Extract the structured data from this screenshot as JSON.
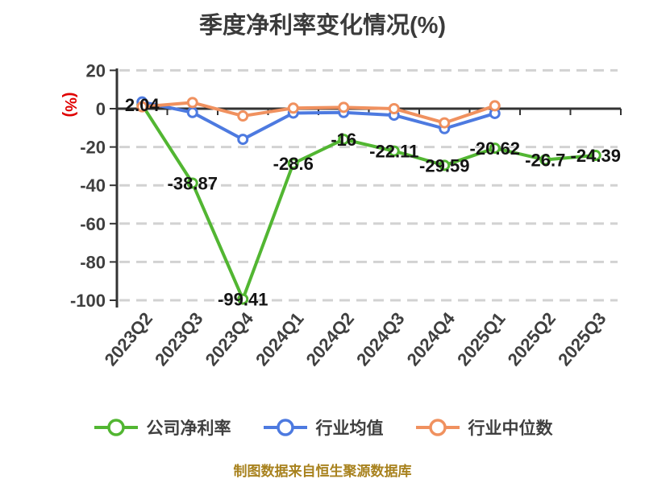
{
  "title": "季度净利率变化情况(%)",
  "footer": "制图数据来自恒生聚源数据库",
  "colors": {
    "title_text": "#3b3b3b",
    "axis_line": "#333333",
    "tick_label": "#3f3f3f",
    "data_label": "#141414",
    "gridline": "#d2d2d2",
    "y_axis_unit": "#e00000",
    "footer_text": "#a8821e",
    "marker_fill": "#ffffff"
  },
  "chart_data": {
    "type": "line",
    "title": "季度净利率变化情况(%)",
    "ylabel": "(%)",
    "xlabel": "",
    "ylim": [
      -100,
      20
    ],
    "yticks": [
      20,
      0,
      -20,
      -40,
      -60,
      -80,
      -100
    ],
    "grid": "horizontal-dashed",
    "legend_position": "bottom",
    "categories": [
      "2023Q2",
      "2023Q3",
      "2023Q4",
      "2024Q1",
      "2024Q2",
      "2024Q3",
      "2024Q4",
      "2025Q1",
      "2025Q2",
      "2025Q3"
    ],
    "series": [
      {
        "id": "company-net-margin",
        "name": "公司净利率",
        "color": "#52b632",
        "values": [
          2.04,
          -38.87,
          -99.41,
          -28.6,
          -16,
          -22.11,
          -29.59,
          -20.62,
          -26.7,
          -24.39
        ],
        "point_labels": [
          "2.04",
          "-38.87",
          "-99.41",
          "-28.6",
          "-16",
          "-22.11",
          "-29.59",
          "-20.62",
          "-26.7",
          "-24.39"
        ]
      },
      {
        "id": "industry-mean",
        "name": "行业均值",
        "color": "#4d7ae0",
        "values": [
          3.5,
          -2,
          -16,
          -2.3,
          -2,
          -3.4,
          -10.4,
          -2.5,
          null,
          null
        ],
        "point_labels": null
      },
      {
        "id": "industry-median",
        "name": "行业中位数",
        "color": "#f0915f",
        "values": [
          1,
          3.2,
          -3.8,
          0.3,
          0.7,
          0,
          -7.4,
          1.5,
          null,
          null
        ],
        "point_labels": null
      }
    ],
    "source_note": "制图数据来自恒生聚源数据库"
  }
}
